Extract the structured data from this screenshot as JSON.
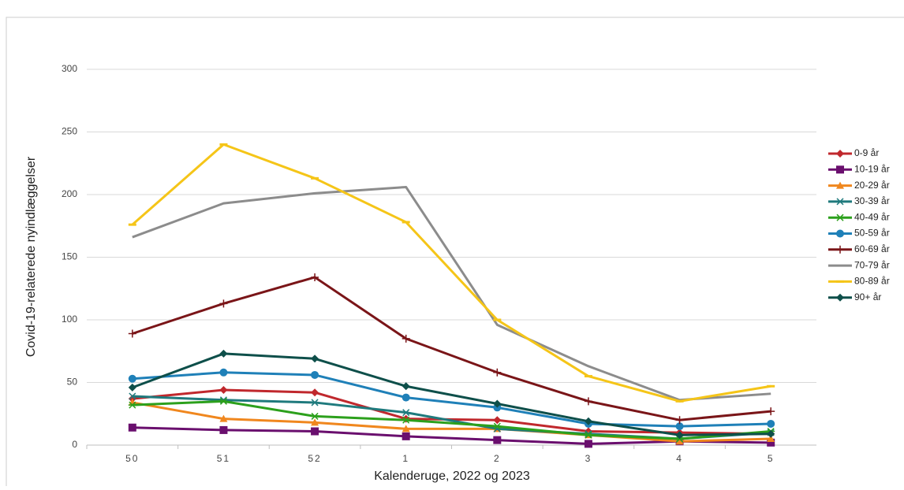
{
  "chart_data": {
    "type": "line",
    "y_label": "Covid-19-relaterede nyindlæggelser",
    "x_label": "Kalenderuge, 2022 og 2023",
    "categories": [
      "50",
      "51",
      "52",
      "1",
      "2",
      "3",
      "4",
      "5"
    ],
    "ylim": [
      0,
      300
    ],
    "yticks": [
      0,
      50,
      100,
      150,
      200,
      250,
      300
    ],
    "grid": true,
    "legend": "right",
    "series": [
      {
        "name": "0-9 år",
        "color": "#c0282d",
        "marker": "diamond",
        "values": [
          37,
          44,
          42,
          21,
          20,
          11,
          10,
          9
        ]
      },
      {
        "name": "10-19 år",
        "color": "#6a0f6e",
        "marker": "square",
        "values": [
          14,
          12,
          11,
          7,
          4,
          1,
          3,
          2
        ]
      },
      {
        "name": "20-29 år",
        "color": "#f0871e",
        "marker": "triangle",
        "values": [
          34,
          21,
          18,
          13,
          13,
          8,
          3,
          5
        ]
      },
      {
        "name": "30-39 år",
        "color": "#1f7a7d",
        "marker": "x",
        "values": [
          39,
          36,
          34,
          26,
          13,
          9,
          5,
          10
        ]
      },
      {
        "name": "40-49 år",
        "color": "#2ca01c",
        "marker": "star",
        "values": [
          32,
          35,
          23,
          20,
          15,
          8,
          5,
          11
        ]
      },
      {
        "name": "50-59 år",
        "color": "#1f80b8",
        "marker": "circle",
        "values": [
          53,
          58,
          56,
          38,
          30,
          17,
          15,
          17
        ]
      },
      {
        "name": "60-69 år",
        "color": "#7a1518",
        "marker": "plus",
        "values": [
          89,
          113,
          134,
          85,
          58,
          35,
          20,
          27
        ]
      },
      {
        "name": "70-79 år",
        "color": "#8c8c8c",
        "marker": "none",
        "values": [
          166,
          193,
          201,
          206,
          96,
          63,
          36,
          41
        ]
      },
      {
        "name": "80-89 år",
        "color": "#f5c518",
        "marker": "dash",
        "values": [
          176,
          240,
          213,
          178,
          100,
          55,
          35,
          47
        ]
      },
      {
        "name": "90+ år",
        "color": "#0e4f4a",
        "marker": "diamond",
        "values": [
          46,
          73,
          69,
          47,
          33,
          19,
          8,
          9
        ]
      }
    ]
  }
}
